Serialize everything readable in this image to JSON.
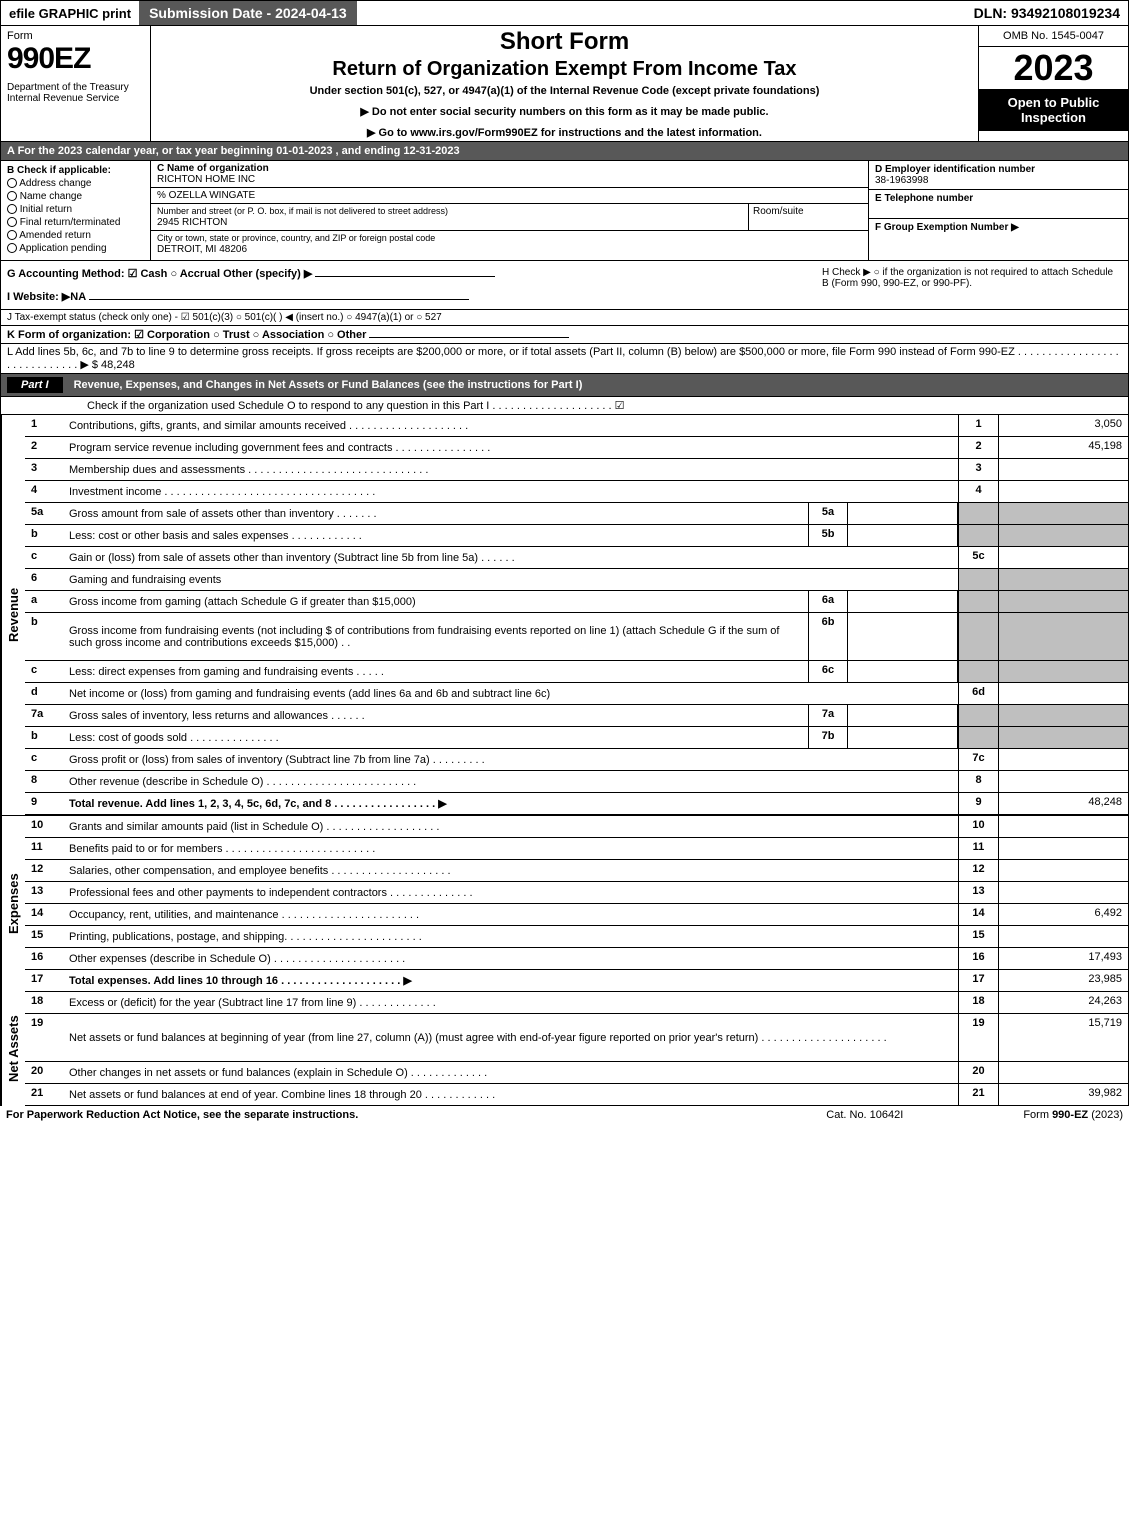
{
  "topbar": {
    "efile": "efile GRAPHIC print",
    "subdate": "Submission Date - 2024-04-13",
    "dln": "DLN: 93492108019234"
  },
  "header": {
    "form": "Form",
    "num": "990EZ",
    "dept": "Department of the Treasury\nInternal Revenue Service",
    "t1": "Short Form",
    "t2": "Return of Organization Exempt From Income Tax",
    "t3": "Under section 501(c), 527, or 4947(a)(1) of the Internal Revenue Code (except private foundations)",
    "t4": "▶ Do not enter social security numbers on this form as it may be made public.",
    "t5": "▶ Go to www.irs.gov/Form990EZ for instructions and the latest information.",
    "omb": "OMB No. 1545-0047",
    "year": "2023",
    "open": "Open to Public Inspection"
  },
  "rowA": "A  For the 2023 calendar year, or tax year beginning 01-01-2023 , and ending 12-31-2023",
  "boxB": {
    "label": "B  Check if applicable:",
    "opts": [
      "Address change",
      "Name change",
      "Initial return",
      "Final return/terminated",
      "Amended return",
      "Application pending"
    ]
  },
  "boxC": {
    "k": "C Name of organization",
    "name": "RICHTON HOME INC",
    "care": "% OZELLA WINGATE",
    "streetlbl": "Number and street (or P. O. box, if mail is not delivered to street address)",
    "street": "2945 RICHTON",
    "roomlbl": "Room/suite",
    "citylbl": "City or town, state or province, country, and ZIP or foreign postal code",
    "city": "DETROIT, MI  48206"
  },
  "boxD": {
    "k": "D Employer identification number",
    "v": "38-1963998"
  },
  "boxE": {
    "k": "E Telephone number",
    "v": ""
  },
  "boxF": {
    "k": "F Group Exemption Number  ▶",
    "v": ""
  },
  "lineG": "G Accounting Method:   ☑ Cash   ○ Accrual   Other (specify) ▶",
  "lineH": "H   Check ▶  ○  if the organization is not required to attach Schedule B (Form 990, 990-EZ, or 990-PF).",
  "lineI": "I Website: ▶NA",
  "lineJ": "J Tax-exempt status (check only one) -  ☑ 501(c)(3)  ○ 501(c)(  ) ◀ (insert no.)  ○ 4947(a)(1) or  ○ 527",
  "lineK": "K Form of organization:   ☑ Corporation   ○ Trust   ○ Association   ○ Other",
  "lineL": "L Add lines 5b, 6c, and 7b to line 9 to determine gross receipts. If gross receipts are $200,000 or more, or if total assets (Part II, column (B) below) are $500,000 or more, file Form 990 instead of Form 990-EZ  .  .  .  .  .  .  .  .  .  .  .  .  .  .  .  .  .  .  .  .  .  .  .  .  .  .  .  .  .  ▶ $ 48,248",
  "part1": {
    "label": "Part I",
    "title": "Revenue, Expenses, and Changes in Net Assets or Fund Balances (see the instructions for Part I)",
    "check": "Check if the organization used Schedule O to respond to any question in this Part I  .  .  .  .  .  .  .  .  .  .  .  .  .  .  .  .  .  .  .  .  ☑"
  },
  "rows": [
    {
      "n": "1",
      "d": "Contributions, gifts, grants, and similar amounts received  .  .  .  .  .  .  .  .  .  .  .  .  .  .  .  .  .  .  .  .",
      "rn": "1",
      "rv": "3,050"
    },
    {
      "n": "2",
      "d": "Program service revenue including government fees and contracts  .  .  .  .  .  .  .  .  .  .  .  .  .  .  .  .",
      "rn": "2",
      "rv": "45,198"
    },
    {
      "n": "3",
      "d": "Membership dues and assessments  .  .  .  .  .  .  .  .  .  .  .  .  .  .  .  .  .  .  .  .  .  .  .  .  .  .  .  .  .  .",
      "rn": "3",
      "rv": ""
    },
    {
      "n": "4",
      "d": "Investment income  .  .  .  .  .  .  .  .  .  .  .  .  .  .  .  .  .  .  .  .  .  .  .  .  .  .  .  .  .  .  .  .  .  .  .",
      "rn": "4",
      "rv": ""
    },
    {
      "n": "5a",
      "d": "Gross amount from sale of assets other than inventory  .  .  .  .  .  .  .",
      "mid": "5a",
      "mv": "",
      "grey": true
    },
    {
      "n": "b",
      "d": "Less: cost or other basis and sales expenses  .  .  .  .  .  .  .  .  .  .  .  .",
      "mid": "5b",
      "mv": "",
      "grey": true
    },
    {
      "n": "c",
      "d": "Gain or (loss) from sale of assets other than inventory (Subtract line 5b from line 5a)  .  .  .  .  .  .",
      "rn": "5c",
      "rv": ""
    },
    {
      "n": "6",
      "d": "Gaming and fundraising events",
      "grey": true,
      "nomid": true
    },
    {
      "n": "a",
      "d": "Gross income from gaming (attach Schedule G if greater than $15,000)",
      "mid": "6a",
      "mv": "",
      "grey": true
    },
    {
      "n": "b",
      "d": "Gross income from fundraising events (not including $                       of contributions from fundraising events reported on line 1) (attach Schedule G if the sum of such gross income and contributions exceeds $15,000)      .   .",
      "mid": "6b",
      "mv": "",
      "grey": true,
      "tall": true
    },
    {
      "n": "c",
      "d": "Less: direct expenses from gaming and fundraising events   .  .  .  .  .",
      "mid": "6c",
      "mv": "",
      "grey": true
    },
    {
      "n": "d",
      "d": "Net income or (loss) from gaming and fundraising events (add lines 6a and 6b and subtract line 6c)",
      "rn": "6d",
      "rv": ""
    },
    {
      "n": "7a",
      "d": "Gross sales of inventory, less returns and allowances  .  .  .  .  .  .",
      "mid": "7a",
      "mv": "",
      "grey": true
    },
    {
      "n": "b",
      "d": "Less: cost of goods sold        .  .  .  .  .  .  .  .  .  .  .  .  .  .  .",
      "mid": "7b",
      "mv": "",
      "grey": true
    },
    {
      "n": "c",
      "d": "Gross profit or (loss) from sales of inventory (Subtract line 7b from line 7a)  .  .  .  .  .  .  .  .  .",
      "rn": "7c",
      "rv": ""
    },
    {
      "n": "8",
      "d": "Other revenue (describe in Schedule O)  .  .  .  .  .  .  .  .  .  .  .  .  .  .  .  .  .  .  .  .  .  .  .  .  .",
      "rn": "8",
      "rv": ""
    },
    {
      "n": "9",
      "d": "Total revenue. Add lines 1, 2, 3, 4, 5c, 6d, 7c, and 8   .  .  .  .  .  .  .  .  .  .  .  .  .  .  .  .  .  ▶",
      "rn": "9",
      "rv": "48,248",
      "bold": true
    }
  ],
  "expenses": [
    {
      "n": "10",
      "d": "Grants and similar amounts paid (list in Schedule O)  .  .  .  .  .  .  .  .  .  .  .  .  .  .  .  .  .  .  .",
      "rn": "10",
      "rv": ""
    },
    {
      "n": "11",
      "d": "Benefits paid to or for members       .  .  .  .  .  .  .  .  .  .  .  .  .  .  .  .  .  .  .  .  .  .  .  .  .",
      "rn": "11",
      "rv": ""
    },
    {
      "n": "12",
      "d": "Salaries, other compensation, and employee benefits  .  .  .  .  .  .  .  .  .  .  .  .  .  .  .  .  .  .  .  .",
      "rn": "12",
      "rv": ""
    },
    {
      "n": "13",
      "d": "Professional fees and other payments to independent contractors  .  .  .  .  .  .  .  .  .  .  .  .  .  .",
      "rn": "13",
      "rv": ""
    },
    {
      "n": "14",
      "d": "Occupancy, rent, utilities, and maintenance .  .  .  .  .  .  .  .  .  .  .  .  .  .  .  .  .  .  .  .  .  .  .",
      "rn": "14",
      "rv": "6,492"
    },
    {
      "n": "15",
      "d": "Printing, publications, postage, and shipping.  .  .  .  .  .  .  .  .  .  .  .  .  .  .  .  .  .  .  .  .  .  .",
      "rn": "15",
      "rv": ""
    },
    {
      "n": "16",
      "d": "Other expenses (describe in Schedule O)     .  .  .  .  .  .  .  .  .  .  .  .  .  .  .  .  .  .  .  .  .  .",
      "rn": "16",
      "rv": "17,493"
    },
    {
      "n": "17",
      "d": "Total expenses. Add lines 10 through 16      .  .  .  .  .  .  .  .  .  .  .  .  .  .  .  .  .  .  .  .  ▶",
      "rn": "17",
      "rv": "23,985",
      "bold": true
    }
  ],
  "netassets": [
    {
      "n": "18",
      "d": "Excess or (deficit) for the year (Subtract line 17 from line 9)        .  .  .  .  .  .  .  .  .  .  .  .  .",
      "rn": "18",
      "rv": "24,263"
    },
    {
      "n": "19",
      "d": "Net assets or fund balances at beginning of year (from line 27, column (A)) (must agree with end-of-year figure reported on prior year's return) .  .  .  .  .  .  .  .  .  .  .  .  .  .  .  .  .  .  .  .  .",
      "rn": "19",
      "rv": "15,719",
      "tall": true,
      "grey": true
    },
    {
      "n": "20",
      "d": "Other changes in net assets or fund balances (explain in Schedule O) .  .  .  .  .  .  .  .  .  .  .  .  .",
      "rn": "20",
      "rv": ""
    },
    {
      "n": "21",
      "d": "Net assets or fund balances at end of year. Combine lines 18 through 20 .  .  .  .  .  .  .  .  .  .  .  .",
      "rn": "21",
      "rv": "39,982"
    }
  ],
  "sidelabels": {
    "rev": "Revenue",
    "exp": "Expenses",
    "net": "Net Assets"
  },
  "footer": {
    "l": "For Paperwork Reduction Act Notice, see the separate instructions.",
    "c": "Cat. No. 10642I",
    "r": "Form 990-EZ (2023)"
  }
}
